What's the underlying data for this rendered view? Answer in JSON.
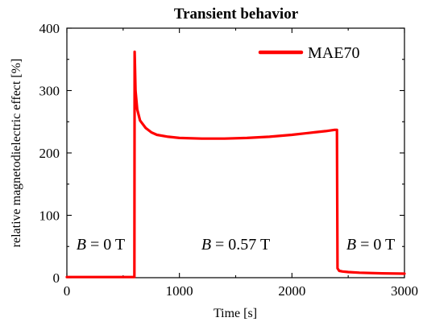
{
  "chart_data": {
    "type": "line",
    "title": "Transient behavior",
    "xlabel": "Time [s]",
    "ylabel": "relative magnetodielectric effect [%]",
    "xlim": [
      0,
      3000
    ],
    "ylim": [
      0,
      400
    ],
    "xticks": [
      0,
      1000,
      2000,
      3000
    ],
    "yticks": [
      0,
      100,
      200,
      300,
      400
    ],
    "grid": false,
    "legend_position": "top-right",
    "series": [
      {
        "name": "MAE70",
        "color": "#ff0000",
        "x": [
          0,
          300,
          590,
          600,
          602,
          610,
          625,
          650,
          700,
          750,
          800,
          900,
          1000,
          1200,
          1400,
          1600,
          1800,
          2000,
          2200,
          2300,
          2380,
          2400,
          2405,
          2420,
          2450,
          2500,
          2600,
          2800,
          3000
        ],
        "y": [
          1,
          1,
          1,
          1,
          362,
          300,
          270,
          252,
          240,
          233,
          229,
          226,
          224,
          223,
          223,
          224,
          226,
          229,
          233,
          235,
          237,
          237,
          15,
          11,
          10,
          9,
          8,
          7,
          6.5
        ]
      }
    ],
    "annotations": [
      {
        "var": "B",
        "rest": " = 0 T",
        "x": 300,
        "y": 45
      },
      {
        "var": "B",
        "rest": " = 0.57 T",
        "x": 1500,
        "y": 45
      },
      {
        "var": "B",
        "rest": " = 0 T",
        "x": 2700,
        "y": 45
      }
    ]
  }
}
